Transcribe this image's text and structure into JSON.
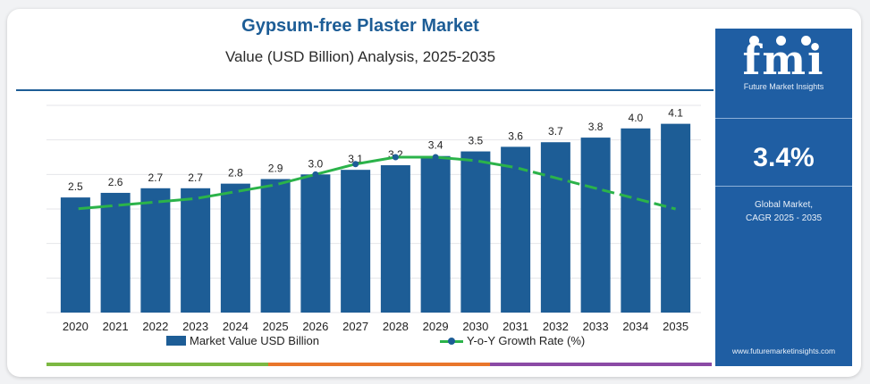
{
  "chart_data": {
    "type": "bar",
    "title": "Gypsum-free Plaster Market",
    "subtitle": "Value (USD Billion) Analysis, 2025-2035",
    "categories": [
      "2020",
      "2021",
      "2022",
      "2023",
      "2024",
      "2025",
      "2026",
      "2027",
      "2028",
      "2029",
      "2030",
      "2031",
      "2032",
      "2033",
      "2034",
      "2035"
    ],
    "series": [
      {
        "name": "Market Value USD Billion",
        "type": "bar",
        "values": [
          2.5,
          2.6,
          2.7,
          2.7,
          2.8,
          2.9,
          3.0,
          3.1,
          3.2,
          3.4,
          3.5,
          3.6,
          3.7,
          3.8,
          4.0,
          4.1
        ],
        "labels": [
          "2.5",
          "2.6",
          "2.7",
          "2.7",
          "2.8",
          "2.9",
          "3.0",
          "3.1",
          "3.2",
          "3.4",
          "3.5",
          "3.6",
          "3.7",
          "3.8",
          "4.0",
          "4.1"
        ]
      },
      {
        "name": "Y-o-Y Growth Rate (%)",
        "type": "line",
        "values": [
          3.0,
          3.1,
          3.2,
          3.3,
          3.5,
          3.7,
          4.0,
          4.3,
          4.5,
          4.5,
          4.4,
          4.2,
          3.9,
          3.6,
          3.3,
          3.0
        ]
      }
    ],
    "ylim": [
      0,
      4.5
    ],
    "y2lim": [
      0,
      6
    ],
    "grid": true,
    "legend_position": "bottom",
    "colors": {
      "bar": "#1d5d96",
      "line": "#2bb34a",
      "marker": "#1d5d96"
    }
  },
  "sidebar": {
    "logo_text": "fmi",
    "logo_subtitle": "Future Market Insights",
    "cagr_value": "3.4%",
    "cagr_label_line1": "Global Market,",
    "cagr_label_line2": "CAGR 2025 - 2035",
    "website": "www.futuremarketinsights.com"
  },
  "stripe_colors": [
    "#7cb842",
    "#e9762b",
    "#8b4aa5"
  ]
}
